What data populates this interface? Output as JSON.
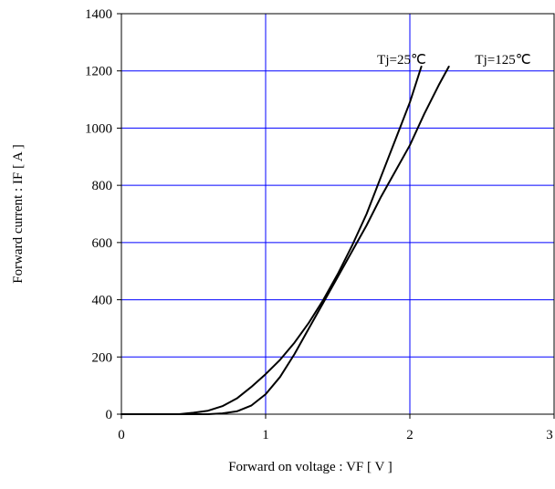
{
  "chart_data": {
    "type": "line",
    "title": "",
    "xlabel": "Forward on voltage : VF [ V ]",
    "ylabel": "Forward current : IF [ A ]",
    "xlim": [
      0,
      3
    ],
    "ylim": [
      0,
      1400
    ],
    "x_ticks": [
      "0",
      "1",
      "2",
      "3"
    ],
    "y_ticks": [
      "0",
      "200",
      "400",
      "600",
      "800",
      "1000",
      "1200",
      "1400"
    ],
    "grid": true,
    "grid_color": "#0000ff",
    "line_color": "#000000",
    "annotations": [
      "Tj=25℃",
      "Tj=125℃"
    ],
    "series": [
      {
        "name": "Tj=25℃",
        "x": [
          0.0,
          0.4,
          0.5,
          0.6,
          0.7,
          0.8,
          0.9,
          1.0,
          1.1,
          1.2,
          1.3,
          1.4,
          1.5,
          1.6,
          1.7,
          1.8,
          1.9,
          2.0,
          2.08
        ],
        "y": [
          0,
          0,
          5,
          12,
          28,
          55,
          95,
          140,
          190,
          250,
          320,
          400,
          490,
          590,
          700,
          830,
          960,
          1090,
          1215
        ]
      },
      {
        "name": "Tj=125℃",
        "x": [
          0.0,
          0.6,
          0.7,
          0.8,
          0.9,
          1.0,
          1.1,
          1.2,
          1.3,
          1.4,
          1.5,
          1.6,
          1.7,
          1.8,
          1.9,
          2.0,
          2.1,
          2.2,
          2.27
        ],
        "y": [
          0,
          0,
          3,
          10,
          30,
          70,
          130,
          210,
          300,
          390,
          480,
          570,
          660,
          760,
          850,
          940,
          1050,
          1150,
          1215
        ]
      }
    ]
  }
}
